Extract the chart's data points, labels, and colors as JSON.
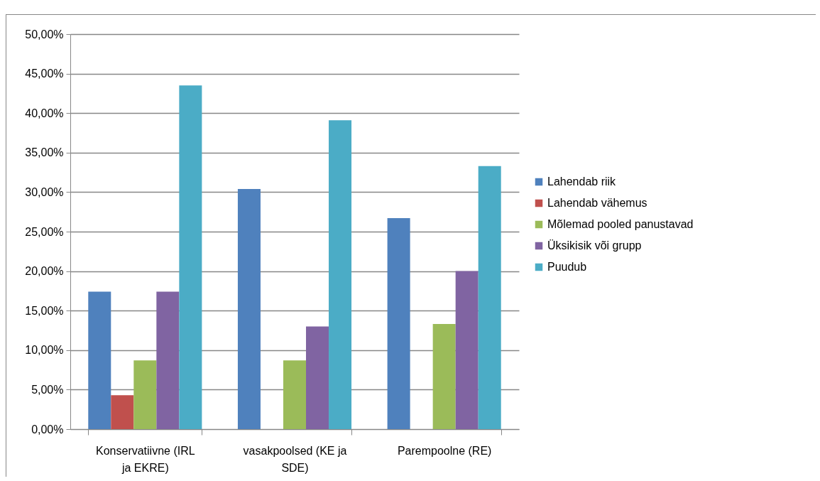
{
  "chart_data": {
    "type": "bar",
    "categories": [
      "Konservatiivne (IRL ja EKRE)",
      "vasakpoolsed (KE ja SDE)",
      "Parempoolne (RE)"
    ],
    "series": [
      {
        "name": "Lahendab riik",
        "color": "#4f81bd",
        "values": [
          17.4,
          30.4,
          26.7
        ]
      },
      {
        "name": "Lahendab vähemus",
        "color": "#c0504d",
        "values": [
          4.3,
          0,
          0
        ]
      },
      {
        "name": "Mõlemad pooled panustavad",
        "color": "#9bbb59",
        "values": [
          8.7,
          8.7,
          13.3
        ]
      },
      {
        "name": "Üksikisik või grupp",
        "color": "#8064a2",
        "values": [
          17.4,
          13.0,
          20.0
        ]
      },
      {
        "name": "Puudub",
        "color": "#4bacc6",
        "values": [
          43.5,
          39.1,
          33.3
        ]
      }
    ],
    "ylim": [
      0,
      50
    ],
    "yticks": [
      {
        "value": 0,
        "label": "0,00%"
      },
      {
        "value": 5,
        "label": "5,00%"
      },
      {
        "value": 10,
        "label": "10,00%"
      },
      {
        "value": 15,
        "label": "15,00%"
      },
      {
        "value": 20,
        "label": "20,00%"
      },
      {
        "value": 25,
        "label": "25,00%"
      },
      {
        "value": 30,
        "label": "30,00%"
      },
      {
        "value": 35,
        "label": "35,00%"
      },
      {
        "value": 40,
        "label": "40,00%"
      },
      {
        "value": 45,
        "label": "45,00%"
      },
      {
        "value": 50,
        "label": "50,00%"
      }
    ],
    "grid": "y",
    "legend": "right"
  }
}
